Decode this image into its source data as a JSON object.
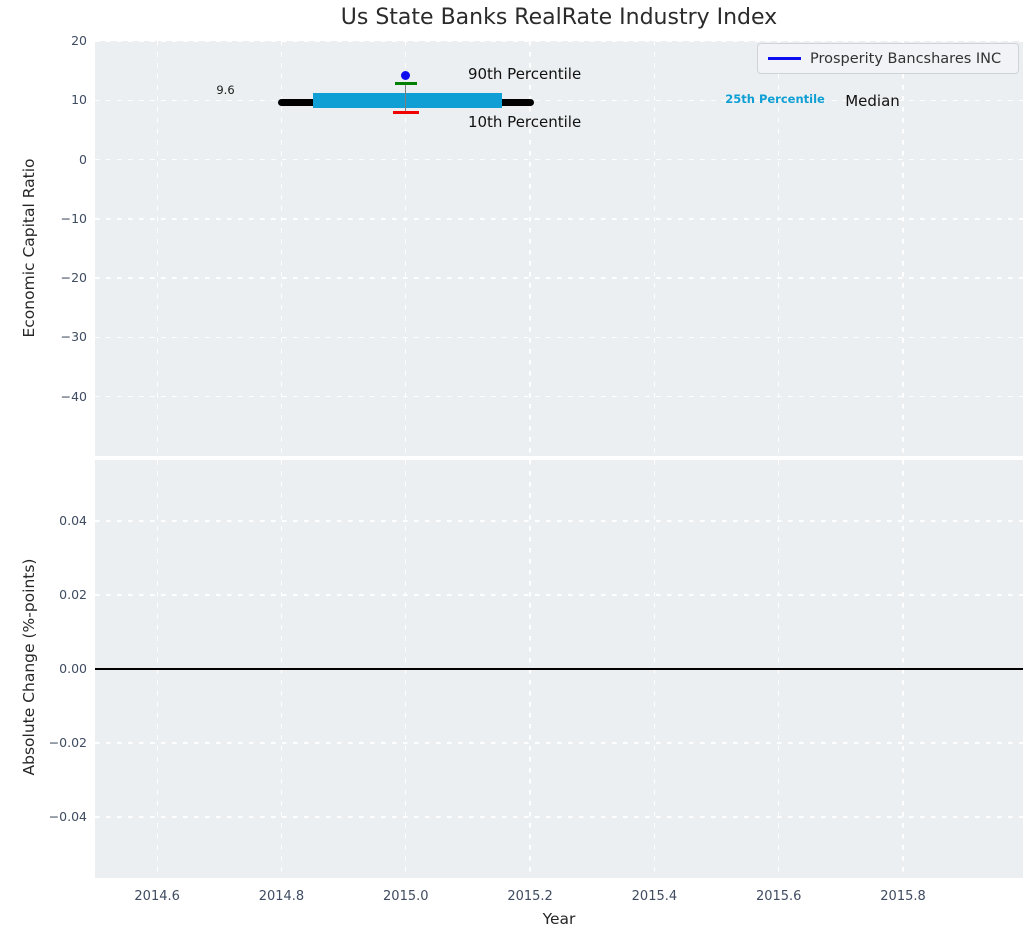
{
  "figure": {
    "title": "Us State Banks RealRate Industry Index",
    "colors": {
      "background": "#ffffff",
      "axes_background": "#eceff1",
      "grid": "#ffffff",
      "tick_label": "#3f4c61",
      "axis_label": "#262626",
      "title": "#2b2b2b",
      "accent_blue": "#0d0df0",
      "accent_cyan": "#0f9fd4",
      "accent_green": "#008000",
      "accent_red": "#f20000"
    }
  },
  "legend": {
    "label": "Prosperity Bancshares INC",
    "line_color": "#0d0df0",
    "position": "upper right"
  },
  "chart_data": [
    {
      "type": "scatter",
      "title": "Us State Banks RealRate Industry Index",
      "ylabel": "Economic Capital Ratio",
      "xlabel": "",
      "xlim": [
        2014.5,
        2015.993
      ],
      "ylim": [
        -50,
        20
      ],
      "grid": true,
      "xticks": {
        "values": [
          2014.6,
          2014.8,
          2015.0,
          2015.2,
          2015.4,
          2015.6,
          2015.8
        ],
        "labels": [
          "2014.6",
          "2014.8",
          "2015.0",
          "2015.2",
          "2015.4",
          "2015.6",
          "2015.8"
        ],
        "show_labels": false
      },
      "yticks": {
        "values": [
          20,
          10,
          0,
          -10,
          -20,
          -30,
          -40
        ],
        "labels": [
          "20",
          "10",
          "0",
          "−10",
          "−20",
          "−30",
          "−40"
        ]
      },
      "series": [
        {
          "key": "median-line",
          "name": "Median",
          "type": "hseg",
          "x1": 2014.794,
          "x2": 2015.206,
          "y": 9.6,
          "color": "#000000",
          "lw": 7.5,
          "round": true
        },
        {
          "key": "iqr-band",
          "name": "25th-75th Percentile band",
          "type": "band",
          "x1": 2014.851,
          "x2": 2015.155,
          "y1": 8.7,
          "y2": 11.2,
          "color": "#0f9fd4"
        },
        {
          "key": "whisker-line",
          "name": "10th-90th Percentile whisker",
          "type": "vseg",
          "x": 2015.0,
          "y1": 7.9,
          "y2": 12.8,
          "color": "#7d7d7d",
          "lw": 1.3
        },
        {
          "key": "p90-cap",
          "name": "90th Percentile",
          "type": "hseg",
          "x1": 2014.982,
          "x2": 2015.018,
          "y": 12.8,
          "color": "#008000",
          "lw": 3,
          "round": false
        },
        {
          "key": "p10-cap",
          "name": "10th Percentile",
          "type": "hseg",
          "x1": 2014.979,
          "x2": 2015.021,
          "y": 7.9,
          "color": "#f20000",
          "lw": 3,
          "round": false
        },
        {
          "key": "company-point",
          "name": "Prosperity Bancshares INC",
          "type": "point",
          "x": 2015.0,
          "y": 14.2,
          "color": "#0d0df0",
          "size": 9
        }
      ],
      "annotations": [
        {
          "key": "median-value-label",
          "text": "9.6",
          "x": 2014.71,
          "y": 11.6,
          "ha": "center",
          "size": 11.5,
          "weight": "normal",
          "color": "#1a1a1a"
        },
        {
          "key": "p90-label",
          "text": "90th Percentile",
          "x": 2015.1,
          "y": 14.4,
          "ha": "left",
          "size": 15,
          "weight": "normal",
          "color": "#111111"
        },
        {
          "key": "p10-label",
          "text": "10th Percentile",
          "x": 2015.1,
          "y": 6.3,
          "ha": "left",
          "size": 15,
          "weight": "normal",
          "color": "#111111"
        },
        {
          "key": "p25-label",
          "text": "25th Percentile",
          "x": 2015.514,
          "y": 10.0,
          "ha": "left",
          "size": 11.5,
          "weight": "bold",
          "color": "#0f9fd4"
        },
        {
          "key": "median-label",
          "text": "Median",
          "x": 2015.707,
          "y": 9.8,
          "ha": "left",
          "size": 15,
          "weight": "normal",
          "color": "#111111"
        }
      ]
    },
    {
      "type": "line",
      "ylabel": "Absolute Change (%-points)",
      "xlabel": "Year",
      "xlim": [
        2014.5,
        2015.993
      ],
      "ylim": [
        -0.0565,
        0.0565
      ],
      "grid": true,
      "xticks": {
        "values": [
          2014.6,
          2014.8,
          2015.0,
          2015.2,
          2015.4,
          2015.6,
          2015.8
        ],
        "labels": [
          "2014.6",
          "2014.8",
          "2015.0",
          "2015.2",
          "2015.4",
          "2015.6",
          "2015.8"
        ],
        "show_labels": true
      },
      "yticks": {
        "values": [
          0.04,
          0.02,
          0.0,
          -0.02,
          -0.04
        ],
        "labels": [
          "0.04",
          "0.02",
          "0.00",
          "−0.02",
          "−0.04"
        ]
      },
      "series": [
        {
          "key": "zero-line",
          "name": "zero baseline",
          "type": "hline",
          "y": 0.0,
          "color": "#000000",
          "lw": 1.6
        }
      ],
      "annotations": []
    }
  ]
}
